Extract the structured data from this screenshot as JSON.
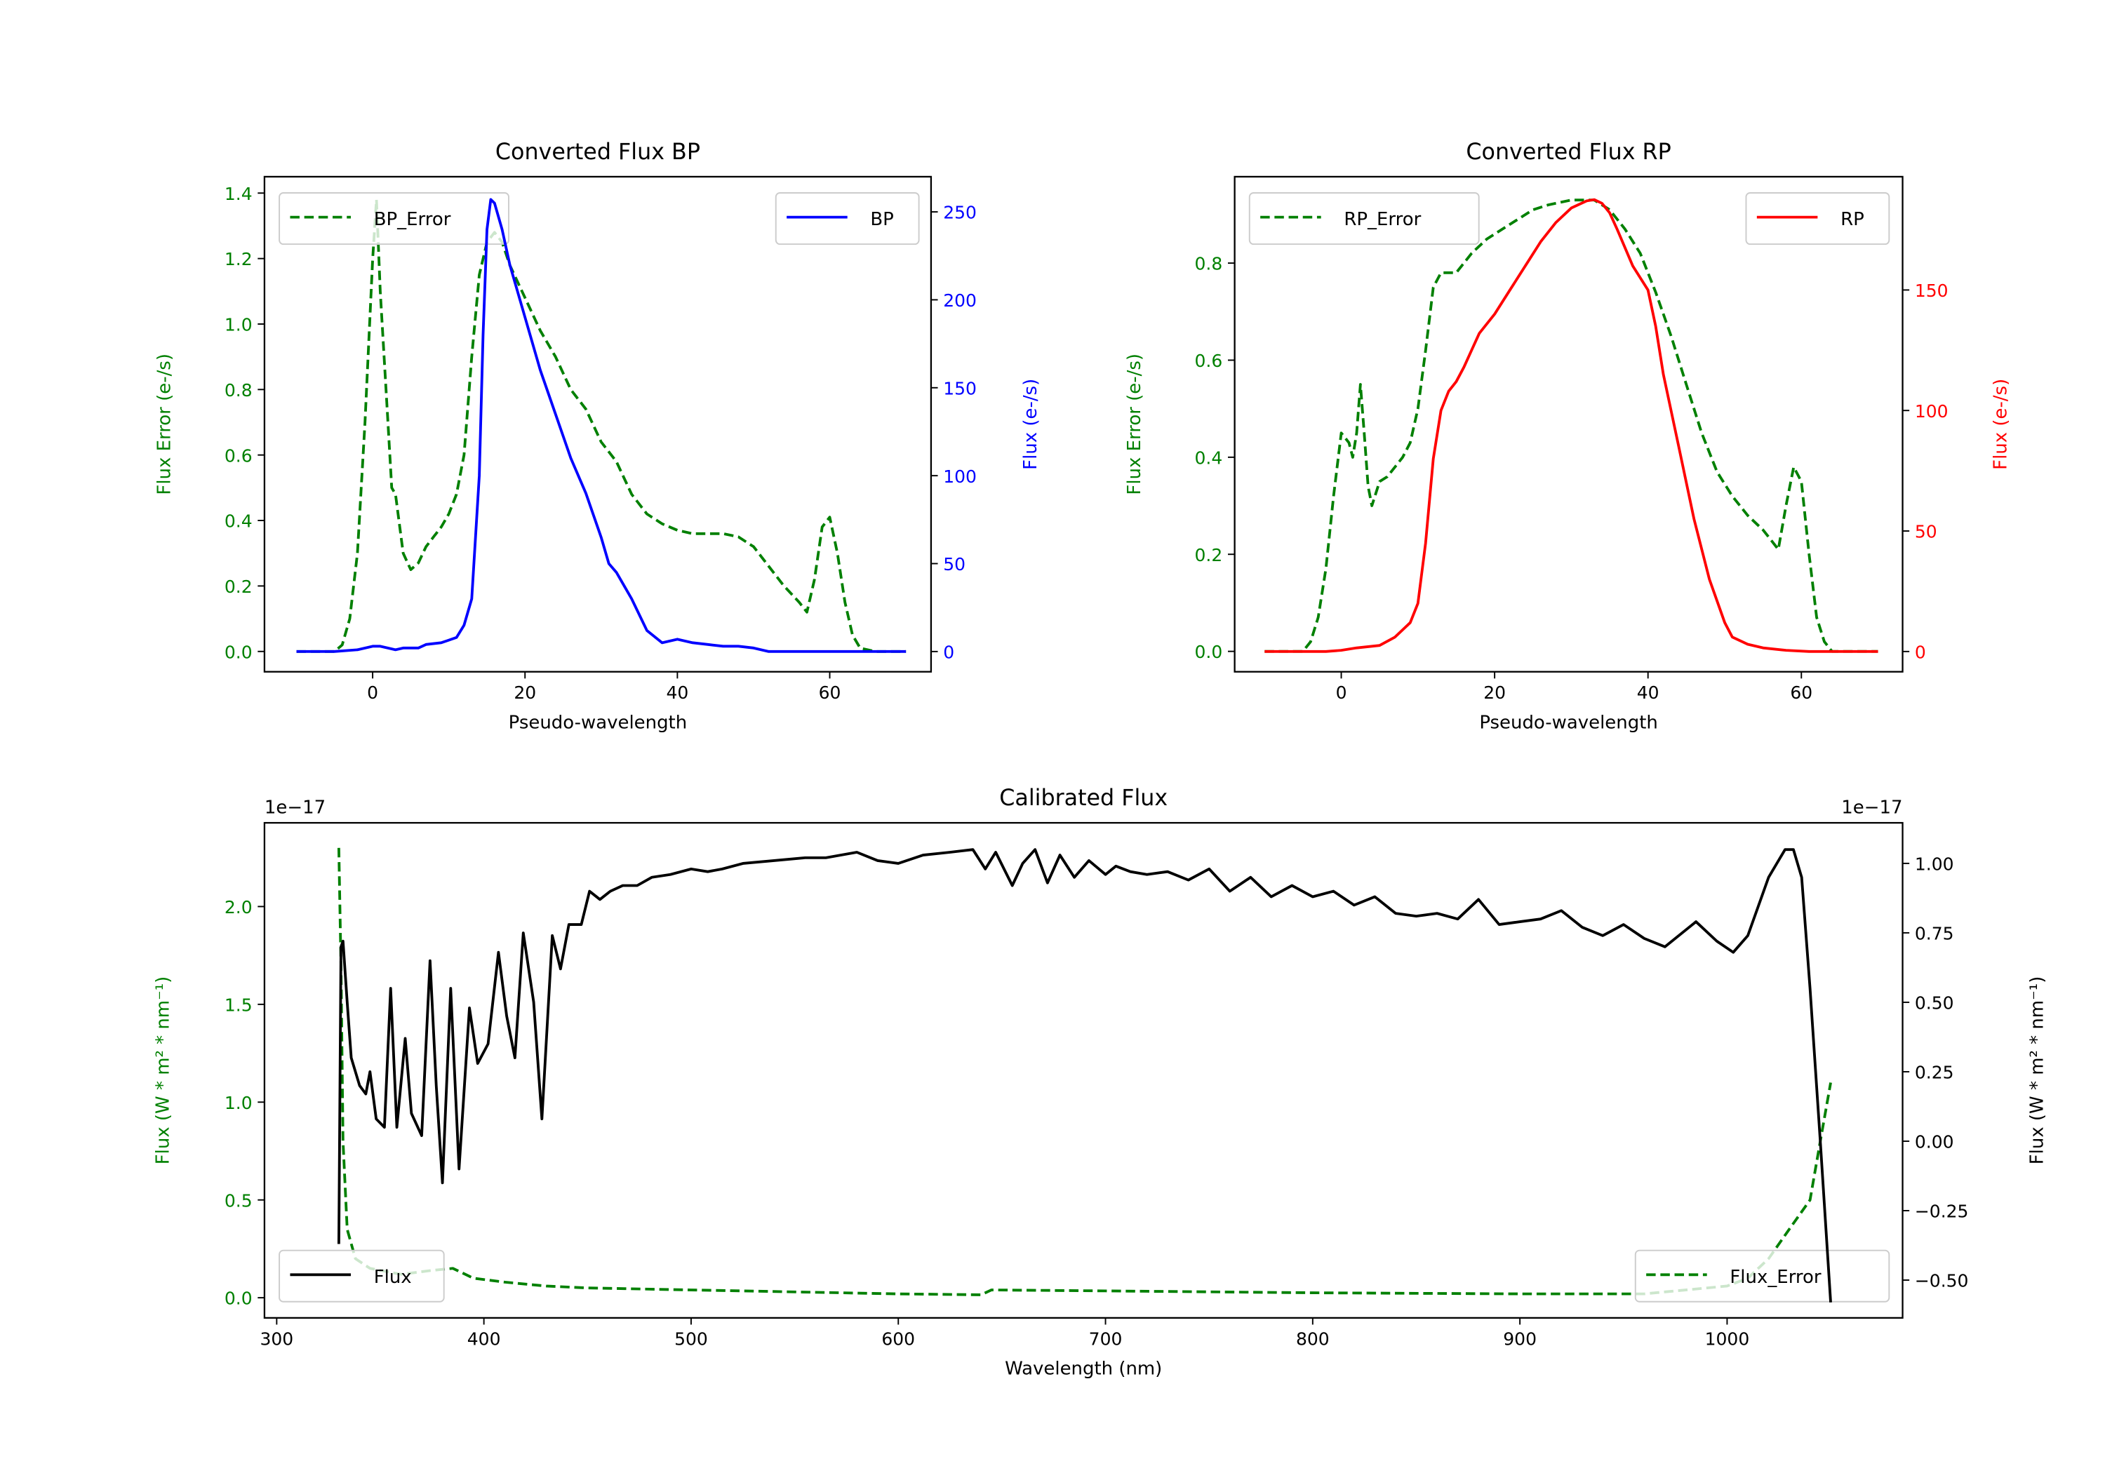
{
  "chart_data": [
    {
      "id": "bp",
      "type": "line",
      "title": "Converted Flux BP",
      "xlabel": "Pseudo-wavelength",
      "ylabel_left": "Flux Error (e-/s)",
      "ylabel_right": "Flux (e-/s)",
      "colors": {
        "left": "#008000",
        "right": "#0000ff"
      },
      "xlim": [
        -14.2,
        73.3
      ],
      "ylim_left": [
        -0.062,
        1.45
      ],
      "ylim_right": [
        -11.5,
        270
      ],
      "xticks": [
        0,
        20,
        40,
        60
      ],
      "xtick_labels": [
        "0",
        "20",
        "40",
        "60"
      ],
      "yticks_left": [
        0,
        0.2,
        0.4,
        0.6,
        0.8,
        1.0,
        1.2,
        1.4
      ],
      "ytick_labels_left": [
        "0.0",
        "0.2",
        "0.4",
        "0.6",
        "0.8",
        "1.0",
        "1.2",
        "1.4"
      ],
      "yticks_right": [
        0,
        50,
        100,
        150,
        200,
        250
      ],
      "ytick_labels_right": [
        "0",
        "50",
        "100",
        "150",
        "200",
        "250"
      ],
      "series": [
        {
          "name": "BP_Error",
          "axis": "left",
          "style": "dashed",
          "color": "#008000",
          "x": [
            -10,
            -5,
            -4,
            -3,
            -2,
            -1,
            0,
            0.5,
            1,
            2,
            2.5,
            3,
            4,
            5,
            6,
            7,
            8,
            9,
            10,
            11,
            12,
            13,
            14,
            15,
            16,
            17,
            18,
            20,
            22,
            24,
            26,
            28,
            30,
            32,
            34,
            36,
            38,
            40,
            42,
            44,
            46,
            48,
            50,
            52,
            54,
            56,
            57,
            58,
            59,
            60,
            61,
            62,
            63,
            64,
            66,
            70
          ],
          "y": [
            0,
            0,
            0.02,
            0.1,
            0.3,
            0.7,
            1.2,
            1.38,
            1.1,
            0.7,
            0.5,
            0.48,
            0.3,
            0.25,
            0.27,
            0.32,
            0.35,
            0.38,
            0.42,
            0.48,
            0.6,
            0.9,
            1.15,
            1.25,
            1.28,
            1.25,
            1.18,
            1.08,
            0.98,
            0.9,
            0.8,
            0.74,
            0.64,
            0.58,
            0.48,
            0.42,
            0.39,
            0.37,
            0.36,
            0.36,
            0.36,
            0.35,
            0.32,
            0.26,
            0.2,
            0.15,
            0.12,
            0.22,
            0.38,
            0.41,
            0.3,
            0.15,
            0.05,
            0.01,
            0,
            0
          ]
        },
        {
          "name": "BP",
          "axis": "right",
          "style": "solid",
          "color": "#0000ff",
          "x": [
            -10,
            -5,
            -2,
            0,
            1,
            2,
            3,
            4,
            6,
            7,
            9,
            11,
            12,
            13,
            14,
            14.5,
            15,
            15.5,
            16,
            17,
            18,
            20,
            22,
            24,
            26,
            28,
            30,
            31,
            32,
            34,
            36,
            38,
            40,
            42,
            44,
            46,
            48,
            50,
            52,
            55,
            58,
            62,
            65,
            70
          ],
          "y": [
            0,
            0,
            1,
            3,
            3,
            2,
            1,
            2,
            2,
            4,
            5,
            8,
            15,
            30,
            100,
            180,
            240,
            257,
            255,
            240,
            220,
            190,
            160,
            135,
            110,
            90,
            65,
            50,
            45,
            30,
            12,
            5,
            7,
            5,
            4,
            3,
            3,
            2,
            0,
            0,
            0,
            0,
            0,
            0
          ]
        }
      ]
    },
    {
      "id": "rp",
      "type": "line",
      "title": "Converted Flux RP",
      "xlabel": "Pseudo-wavelength",
      "ylabel_left": "Flux Error (e-/s)",
      "ylabel_right": "Flux (e-/s)",
      "colors": {
        "left": "#008000",
        "right": "#ff0000"
      },
      "xlim": [
        -13.9,
        73.2
      ],
      "ylim_left": [
        -0.042,
        0.978
      ],
      "ylim_right": [
        -8.4,
        197
      ],
      "xticks": [
        0,
        20,
        40,
        60
      ],
      "xtick_labels": [
        "0",
        "20",
        "40",
        "60"
      ],
      "yticks_left": [
        0,
        0.2,
        0.4,
        0.6,
        0.8
      ],
      "ytick_labels_left": [
        "0.0",
        "0.2",
        "0.4",
        "0.6",
        "0.8"
      ],
      "yticks_right": [
        0,
        50,
        100,
        150
      ],
      "ytick_labels_right": [
        "0",
        "50",
        "100",
        "150"
      ],
      "series": [
        {
          "name": "RP_Error",
          "axis": "left",
          "style": "dashed",
          "color": "#008000",
          "x": [
            -10,
            -5,
            -4,
            -3,
            -2,
            -1,
            0,
            1,
            1.5,
            2,
            2.5,
            3,
            3.5,
            4,
            5,
            6,
            7,
            8,
            9,
            10,
            11,
            12,
            13,
            14,
            15,
            17,
            19,
            21,
            23,
            25,
            27,
            30,
            33,
            35,
            37,
            39,
            41,
            43,
            45,
            47,
            49,
            51,
            53,
            55,
            56,
            57,
            58,
            59,
            60,
            61,
            62,
            63,
            64,
            70
          ],
          "y": [
            0,
            0,
            0.02,
            0.07,
            0.17,
            0.32,
            0.45,
            0.43,
            0.4,
            0.45,
            0.55,
            0.45,
            0.34,
            0.3,
            0.35,
            0.36,
            0.38,
            0.4,
            0.43,
            0.5,
            0.62,
            0.75,
            0.78,
            0.78,
            0.78,
            0.82,
            0.85,
            0.87,
            0.89,
            0.91,
            0.92,
            0.93,
            0.93,
            0.91,
            0.87,
            0.82,
            0.74,
            0.65,
            0.55,
            0.45,
            0.37,
            0.32,
            0.28,
            0.25,
            0.23,
            0.21,
            0.3,
            0.38,
            0.35,
            0.2,
            0.07,
            0.02,
            0,
            0
          ]
        },
        {
          "name": "RP",
          "axis": "right",
          "style": "solid",
          "color": "#ff0000",
          "x": [
            -10,
            -2,
            0,
            2,
            5,
            7,
            9,
            10,
            11,
            12,
            13,
            14,
            15,
            16,
            17,
            18,
            20,
            22,
            24,
            26,
            28,
            30,
            32,
            33,
            34,
            35,
            36,
            38,
            40,
            41,
            42,
            44,
            46,
            48,
            50,
            51,
            53,
            55,
            58,
            61,
            70
          ],
          "y": [
            0,
            0,
            0.5,
            1.5,
            2.5,
            6,
            12,
            20,
            45,
            80,
            100,
            108,
            112,
            118,
            125,
            132,
            140,
            150,
            160,
            170,
            178,
            184,
            187,
            187.5,
            186,
            182,
            175,
            160,
            150,
            135,
            115,
            85,
            55,
            30,
            12,
            6,
            3,
            1.5,
            0.5,
            0,
            0
          ]
        }
      ]
    },
    {
      "id": "cal",
      "type": "line",
      "title": "Calibrated Flux",
      "xlabel": "Wavelength (nm)",
      "ylabel_left": "Flux (W * m² * nm⁻¹)",
      "ylabel_right": "Flux (W * m² * nm⁻¹)",
      "offset_left": "1e−17",
      "offset_right": "1e−17",
      "colors": {
        "left": "#008000",
        "right": "#000000"
      },
      "xlim": [
        294.1,
        1084.7
      ],
      "ylim_left": [
        -0.103,
        2.428
      ],
      "ylim_right": [
        -0.636,
        1.146
      ],
      "xticks": [
        300,
        400,
        500,
        600,
        700,
        800,
        900,
        1000
      ],
      "xtick_labels": [
        "300",
        "400",
        "500",
        "600",
        "700",
        "800",
        "900",
        "1000"
      ],
      "yticks_left": [
        0,
        0.5,
        1.0,
        1.5,
        2.0
      ],
      "ytick_labels_left": [
        "0.0",
        "0.5",
        "1.0",
        "1.5",
        "2.0"
      ],
      "yticks_right": [
        -0.5,
        -0.25,
        0,
        0.25,
        0.5,
        0.75,
        1.0
      ],
      "ytick_labels_right": [
        "−0.50",
        "−0.25",
        "0.00",
        "0.25",
        "0.50",
        "0.75",
        "1.00"
      ],
      "series": [
        {
          "name": "Flux_Error",
          "axis": "left",
          "style": "dashed",
          "color": "#008000",
          "x": [
            330,
            331,
            332,
            334,
            338,
            345,
            360,
            375,
            385,
            395,
            410,
            430,
            450,
            500,
            600,
            640,
            645,
            700,
            800,
            900,
            960,
            1000,
            1010,
            1020,
            1030,
            1040,
            1045,
            1050
          ],
          "y": [
            2.3,
            1.7,
            0.8,
            0.35,
            0.2,
            0.15,
            0.12,
            0.14,
            0.15,
            0.1,
            0.08,
            0.06,
            0.05,
            0.04,
            0.02,
            0.015,
            0.04,
            0.035,
            0.025,
            0.02,
            0.02,
            0.06,
            0.1,
            0.2,
            0.35,
            0.5,
            0.8,
            1.1
          ]
        },
        {
          "name": "Flux",
          "axis": "right",
          "style": "solid",
          "color": "#000000",
          "x": [
            330,
            331,
            332,
            334,
            336,
            340,
            343,
            345,
            348,
            352,
            355,
            358,
            362,
            365,
            370,
            374,
            377,
            380,
            384,
            388,
            393,
            397,
            402,
            407,
            411,
            415,
            419,
            424,
            428,
            433,
            437,
            441,
            447,
            451,
            456,
            461,
            467,
            474,
            481,
            490,
            500,
            508,
            515,
            525,
            540,
            555,
            565,
            580,
            590,
            600,
            612,
            625,
            636,
            642,
            647,
            655,
            660,
            666,
            672,
            678,
            685,
            692,
            700,
            705,
            712,
            720,
            730,
            740,
            750,
            760,
            770,
            780,
            790,
            800,
            810,
            820,
            830,
            840,
            850,
            860,
            870,
            880,
            890,
            900,
            910,
            920,
            930,
            940,
            950,
            960,
            970,
            985,
            995,
            1003,
            1010,
            1020,
            1028,
            1032,
            1036,
            1040,
            1045,
            1050
          ],
          "y": [
            -0.37,
            0.7,
            0.72,
            0.5,
            0.3,
            0.2,
            0.17,
            0.25,
            0.08,
            0.05,
            0.55,
            0.05,
            0.37,
            0.1,
            0.02,
            0.65,
            0.2,
            -0.15,
            0.55,
            -0.1,
            0.48,
            0.28,
            0.35,
            0.68,
            0.45,
            0.3,
            0.75,
            0.5,
            0.08,
            0.74,
            0.62,
            0.78,
            0.78,
            0.9,
            0.87,
            0.9,
            0.92,
            0.92,
            0.95,
            0.96,
            0.98,
            0.97,
            0.98,
            1.0,
            1.01,
            1.02,
            1.02,
            1.04,
            1.01,
            1.0,
            1.03,
            1.04,
            1.05,
            0.98,
            1.04,
            0.92,
            1.0,
            1.05,
            0.93,
            1.03,
            0.95,
            1.01,
            0.96,
            0.99,
            0.97,
            0.96,
            0.97,
            0.94,
            0.98,
            0.9,
            0.95,
            0.88,
            0.92,
            0.88,
            0.9,
            0.85,
            0.88,
            0.82,
            0.81,
            0.82,
            0.8,
            0.87,
            0.78,
            0.79,
            0.8,
            0.83,
            0.77,
            0.74,
            0.78,
            0.73,
            0.7,
            0.79,
            0.72,
            0.68,
            0.74,
            0.95,
            1.05,
            1.05,
            0.95,
            0.55,
            0.0,
            -0.58
          ]
        }
      ]
    }
  ]
}
